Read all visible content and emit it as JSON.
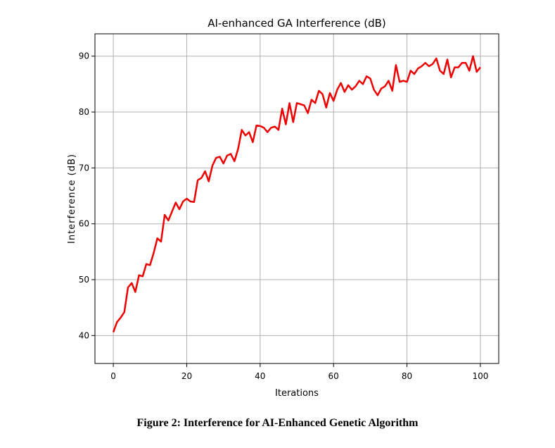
{
  "figure": {
    "caption": "Figure 2: Interference for AI-Enhanced Genetic Algorithm"
  },
  "chart_data": {
    "type": "line",
    "title": "AI-enhanced GA Interference (dB)",
    "xlabel": "Iterations",
    "ylabel": "Interference (dB)",
    "xlim": [
      -5,
      105
    ],
    "ylim": [
      35,
      94
    ],
    "xticks": [
      0,
      20,
      40,
      60,
      80,
      100
    ],
    "yticks": [
      40,
      50,
      60,
      70,
      80,
      90
    ],
    "grid": true,
    "series": [
      {
        "color": "#ee0000",
        "x": [
          0,
          1,
          2,
          3,
          4,
          5,
          6,
          7,
          8,
          9,
          10,
          11,
          12,
          13,
          14,
          15,
          16,
          17,
          18,
          19,
          20,
          21,
          22,
          23,
          24,
          25,
          26,
          27,
          28,
          29,
          30,
          31,
          32,
          33,
          34,
          35,
          36,
          37,
          38,
          39,
          40,
          41,
          42,
          43,
          44,
          45,
          46,
          47,
          48,
          49,
          50,
          51,
          52,
          53,
          54,
          55,
          56,
          57,
          58,
          59,
          60,
          61,
          62,
          63,
          64,
          65,
          66,
          67,
          68,
          69,
          70,
          71,
          72,
          73,
          74,
          75,
          76,
          77,
          78,
          79,
          80,
          81,
          82,
          83,
          84,
          85,
          86,
          87,
          88,
          89,
          90,
          91,
          92,
          93,
          94,
          95,
          96,
          97,
          98,
          99,
          100
        ],
        "y": [
          40.6,
          42.4,
          43.2,
          44.2,
          48.6,
          49.4,
          47.8,
          50.8,
          50.6,
          52.8,
          52.6,
          54.8,
          57.4,
          56.8,
          61.6,
          60.6,
          62.2,
          63.8,
          62.6,
          64.0,
          64.5,
          64.0,
          63.9,
          67.8,
          68.2,
          69.4,
          67.6,
          70.4,
          71.8,
          72.0,
          70.8,
          72.2,
          72.5,
          71.2,
          73.4,
          76.8,
          75.8,
          76.4,
          74.6,
          77.6,
          77.5,
          77.2,
          76.4,
          77.2,
          77.4,
          76.8,
          80.6,
          77.8,
          81.6,
          78.2,
          81.6,
          81.4,
          81.2,
          79.8,
          82.2,
          81.6,
          83.8,
          83.2,
          80.8,
          83.4,
          82.0,
          84.0,
          85.2,
          83.6,
          84.8,
          84.0,
          84.6,
          85.6,
          85.0,
          86.4,
          86.0,
          84.0,
          83.0,
          84.2,
          84.6,
          85.6,
          83.8,
          88.4,
          85.4,
          85.6,
          85.4,
          87.4,
          86.8,
          87.8,
          88.2,
          88.8,
          88.2,
          88.6,
          89.6,
          87.4,
          86.8,
          89.4,
          86.2,
          88.0,
          88.0,
          88.8,
          88.8,
          87.4,
          90.0,
          87.2,
          88.0
        ]
      }
    ]
  }
}
